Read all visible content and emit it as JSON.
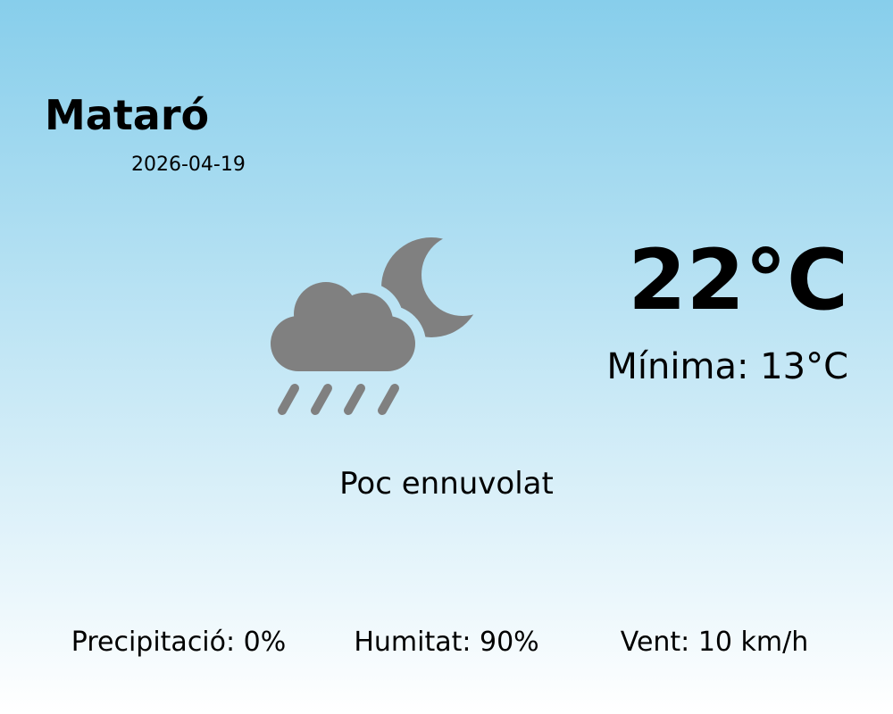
{
  "location": {
    "city": "Mataró",
    "date": "2026-04-19"
  },
  "current": {
    "temperature": "22°C",
    "minimum": "Mínima: 13°C",
    "condition": "Poc ennuvolat",
    "icon": "cloud-rain-moon-icon",
    "icon_color": "#808080"
  },
  "stats": {
    "precipitation": "Precipitació: 0%",
    "humidity": "Humitat: 90%",
    "wind": "Vent: 10 km/h"
  },
  "colors": {
    "background_top": "#87ceeb",
    "background_bottom": "#ffffff"
  }
}
